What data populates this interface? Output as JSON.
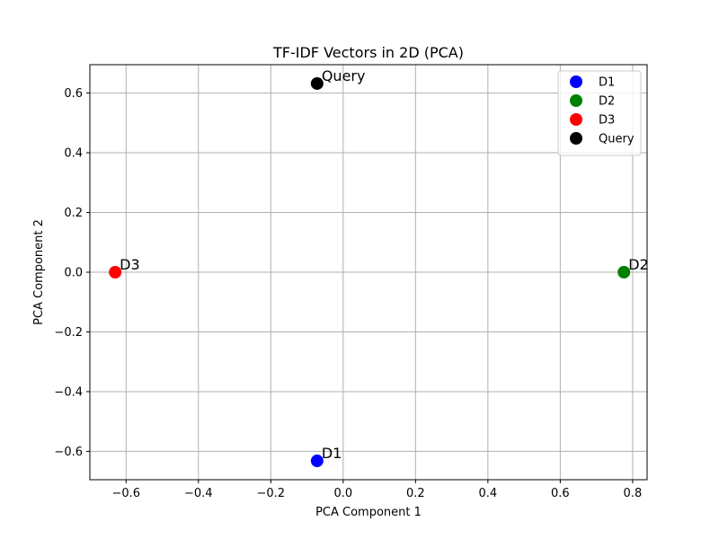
{
  "chart_data": {
    "type": "scatter",
    "title": "TF-IDF Vectors in 2D (PCA)",
    "xlabel": "PCA Component 1",
    "ylabel": "PCA Component 2",
    "xlim": [
      -0.7,
      0.84
    ],
    "ylim": [
      -0.695,
      0.695
    ],
    "xticks": [
      -0.6,
      -0.4,
      -0.2,
      0.0,
      0.2,
      0.4,
      0.6,
      0.8
    ],
    "xtick_labels": [
      "−0.6",
      "−0.4",
      "−0.2",
      "0.0",
      "0.2",
      "0.4",
      "0.6",
      "0.8"
    ],
    "yticks": [
      -0.6,
      -0.4,
      -0.2,
      0.0,
      0.2,
      0.4,
      0.6
    ],
    "ytick_labels": [
      "−0.6",
      "−0.4",
      "−0.2",
      "0.0",
      "0.2",
      "0.4",
      "0.6"
    ],
    "grid": true,
    "legend_position": "top-right",
    "series": [
      {
        "name": "D1",
        "color": "#0000ff",
        "points": [
          {
            "x": -0.072,
            "y": -0.632
          }
        ],
        "label": "D1"
      },
      {
        "name": "D2",
        "color": "#008000",
        "points": [
          {
            "x": 0.776,
            "y": 0.0
          }
        ],
        "label": "D2"
      },
      {
        "name": "D3",
        "color": "#ff0000",
        "points": [
          {
            "x": -0.63,
            "y": 0.0
          }
        ],
        "label": "D3"
      },
      {
        "name": "Query",
        "color": "#000000",
        "points": [
          {
            "x": -0.072,
            "y": 0.632
          }
        ],
        "label": "Query"
      }
    ]
  }
}
